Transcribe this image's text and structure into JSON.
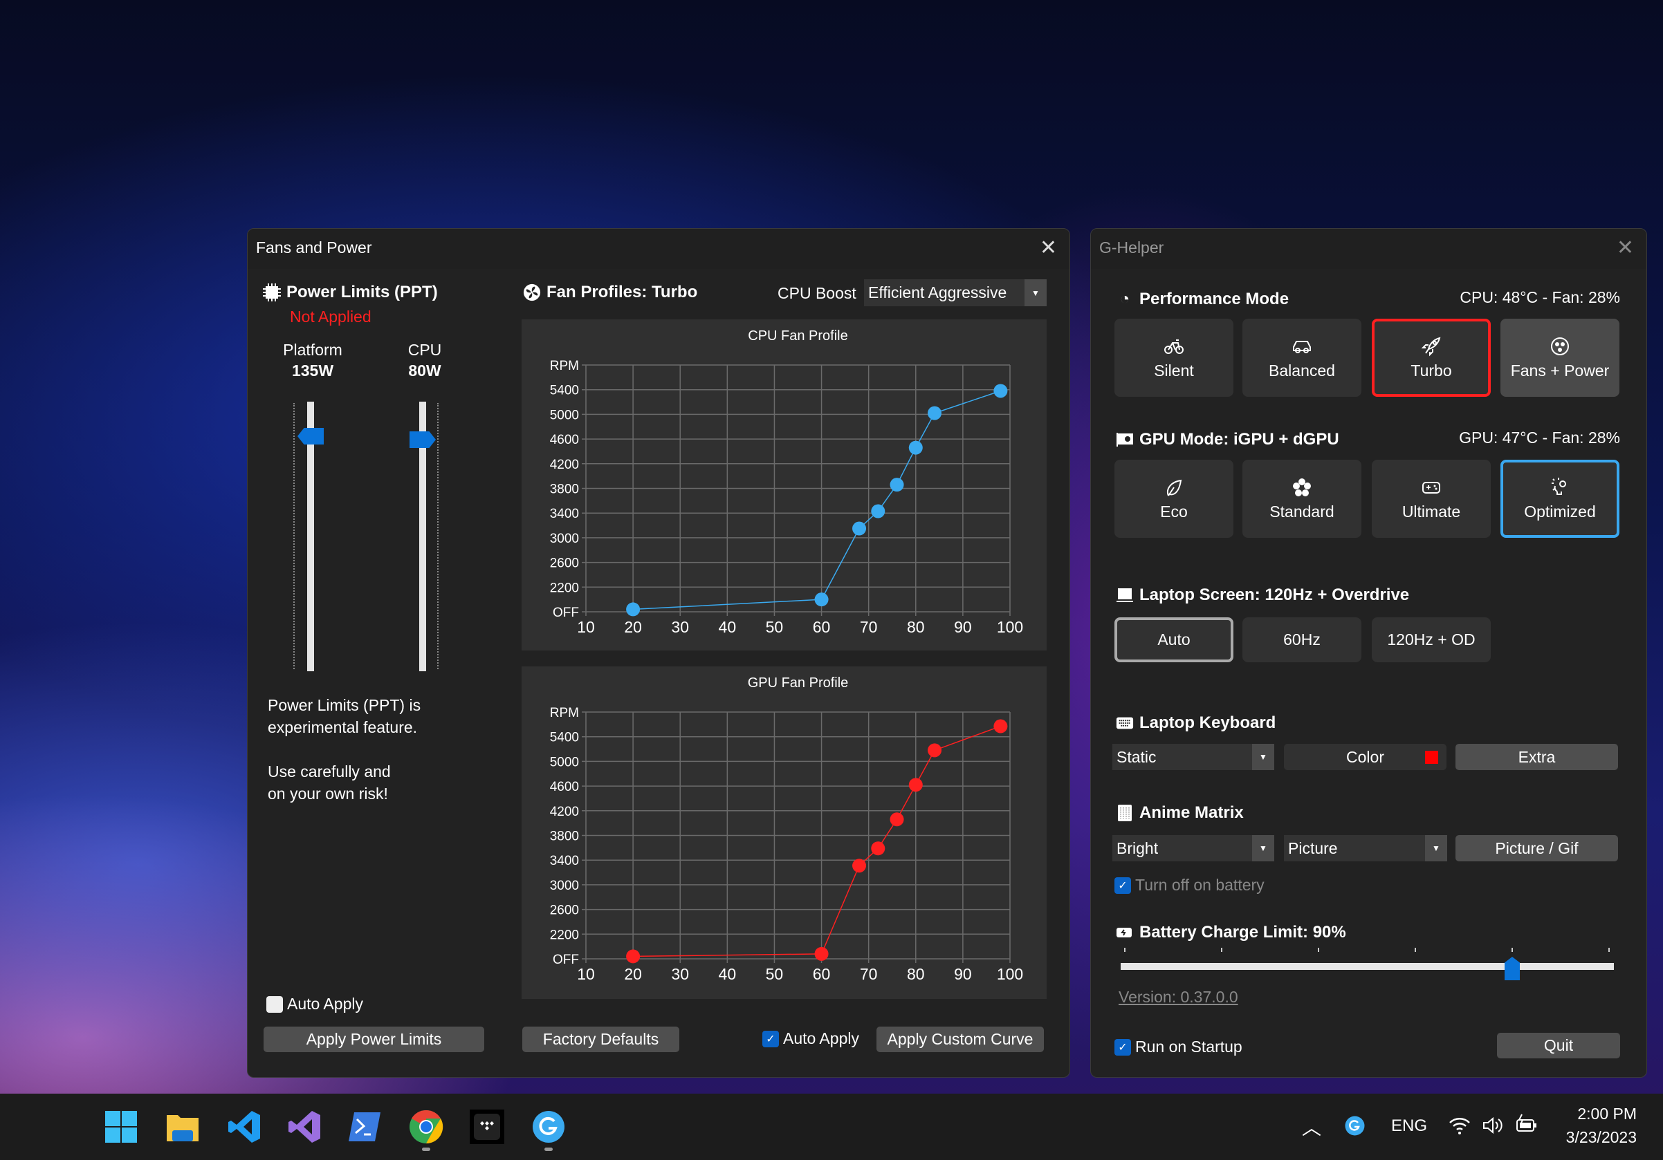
{
  "fans_window": {
    "title": "Fans and Power",
    "power_limits": {
      "title": "Power Limits (PPT)",
      "status": "Not Applied",
      "status_color": "#ff2020",
      "platform": {
        "label": "Platform",
        "value": "135W"
      },
      "cpu": {
        "label": "CPU",
        "value": "80W"
      },
      "note_lines": [
        "Power Limits (PPT) is",
        "experimental feature.",
        "Use carefully and",
        "on your own risk!"
      ],
      "auto_apply": {
        "label": "Auto Apply",
        "checked": false
      },
      "apply_button": "Apply Power Limits"
    },
    "fan_profiles": {
      "title": "Fan Profiles: Turbo",
      "cpu_boost_label": "CPU Boost",
      "cpu_boost_value": "Efficient Aggressive",
      "factory_defaults": "Factory Defaults",
      "auto_apply": {
        "label": "Auto Apply",
        "checked": true
      },
      "apply_button": "Apply Custom Curve"
    }
  },
  "chart_data": [
    {
      "type": "line",
      "title": "CPU Fan Profile",
      "color": "#3aaaf0",
      "x_ticks": [
        10,
        20,
        30,
        40,
        50,
        60,
        70,
        80,
        90,
        100
      ],
      "xlim": [
        10,
        100
      ],
      "ylim": [
        1800,
        5800
      ],
      "y_ticks": [
        1800,
        2200,
        2600,
        3000,
        3400,
        3800,
        4200,
        4600,
        5000,
        5400,
        5800
      ],
      "y_tick_labels": [
        "OFF",
        "2200",
        "2600",
        "3000",
        "3400",
        "3800",
        "4200",
        "4600",
        "5000",
        "5400",
        "RPM"
      ],
      "grid": true,
      "x": [
        20,
        60,
        68,
        72,
        76,
        80,
        84,
        98
      ],
      "y": [
        1840,
        2000,
        3150,
        3430,
        3860,
        4460,
        5020,
        5380
      ]
    },
    {
      "type": "line",
      "title": "GPU Fan Profile",
      "color": "#ff2020",
      "x_ticks": [
        10,
        20,
        30,
        40,
        50,
        60,
        70,
        80,
        90,
        100
      ],
      "xlim": [
        10,
        100
      ],
      "ylim": [
        1800,
        5800
      ],
      "y_ticks": [
        1800,
        2200,
        2600,
        3000,
        3400,
        3800,
        4200,
        4600,
        5000,
        5400,
        5800
      ],
      "y_tick_labels": [
        "OFF",
        "2200",
        "2600",
        "3000",
        "3400",
        "3800",
        "4200",
        "4600",
        "5000",
        "5400",
        "RPM"
      ],
      "grid": true,
      "x": [
        20,
        60,
        68,
        72,
        76,
        80,
        84,
        98
      ],
      "y": [
        1840,
        1880,
        3310,
        3590,
        4060,
        4620,
        5180,
        5570
      ]
    }
  ],
  "ghelper": {
    "title": "G-Helper",
    "performance": {
      "title": "Performance Mode",
      "status": "CPU: 48°C -  Fan: 28%",
      "modes": [
        {
          "label": "Silent",
          "icon": "bicycle-icon"
        },
        {
          "label": "Balanced",
          "icon": "car-icon"
        },
        {
          "label": "Turbo",
          "icon": "rocket-icon"
        },
        {
          "label": "Fans + Power",
          "icon": "fan-icon"
        }
      ],
      "selected": "Turbo",
      "selected_color": "#ff2020"
    },
    "gpu": {
      "title": "GPU Mode: iGPU + dGPU",
      "status": "GPU: 47°C -  Fan: 28%",
      "modes": [
        {
          "label": "Eco",
          "icon": "leaf-icon"
        },
        {
          "label": "Standard",
          "icon": "flower-icon"
        },
        {
          "label": "Ultimate",
          "icon": "gamepad-icon"
        },
        {
          "label": "Optimized",
          "icon": "lightbulb-gear-icon"
        }
      ],
      "selected": "Optimized",
      "selected_color": "#3aa8f0"
    },
    "screen": {
      "title": "Laptop Screen: 120Hz + Overdrive",
      "options": [
        "Auto",
        "60Hz",
        "120Hz + OD"
      ],
      "selected": "Auto"
    },
    "keyboard": {
      "title": "Laptop Keyboard",
      "mode": "Static",
      "color_label": "Color",
      "color": "#ff0000",
      "extra": "Extra"
    },
    "anime": {
      "title": "Anime Matrix",
      "brightness": "Bright",
      "mode": "Picture",
      "picture_button": "Picture / Gif",
      "battery_off": {
        "label": "Turn off on battery",
        "checked": true
      }
    },
    "battery": {
      "title": "Battery Charge Limit: 90%",
      "limit_percent": 90,
      "range": [
        50,
        100
      ]
    },
    "version": "Version: 0.37.0.0",
    "run_on_startup": {
      "label": "Run on Startup",
      "checked": true
    },
    "quit": "Quit"
  },
  "taskbar": {
    "apps": [
      "start-icon",
      "file-explorer-icon",
      "vscode-icon",
      "visual-studio-icon",
      "powershell-icon",
      "chrome-icon",
      "tidal-icon",
      "ghelper-icon"
    ],
    "language": "ENG",
    "time": "2:00 PM",
    "date": "3/23/2023"
  }
}
